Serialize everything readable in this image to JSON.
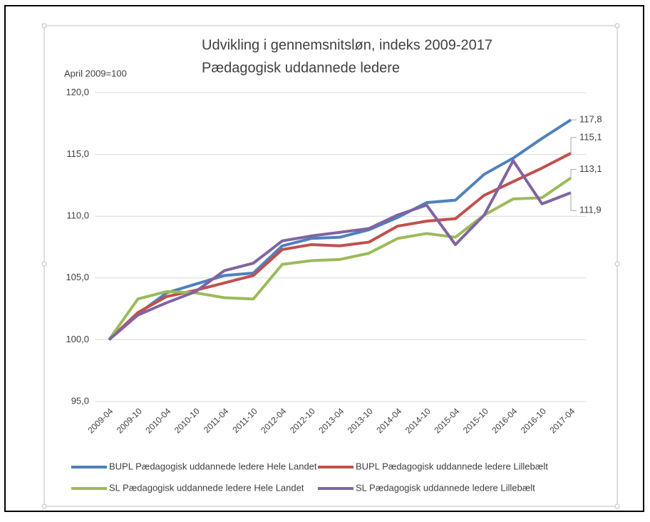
{
  "chart_data": {
    "type": "line",
    "title": "Udvikling i gennemsnitsløn, indeks 2009-2017",
    "subtitle": "Pædagogisk uddannede ledere",
    "y_label": "April 2009=100",
    "categories": [
      "2009-04",
      "2009-10",
      "2010-04",
      "2010-10",
      "2011-04",
      "2011-10",
      "2012-04",
      "2012-10",
      "2013-04",
      "2013-10",
      "2014-04",
      "2014-10",
      "2015-04",
      "2015-10",
      "2016-04",
      "2016-10",
      "2017-04"
    ],
    "ylim": [
      95,
      120
    ],
    "yticks": [
      {
        "value": 95,
        "label": "95,0"
      },
      {
        "value": 100,
        "label": "100,0"
      },
      {
        "value": 105,
        "label": "105,0"
      },
      {
        "value": 110,
        "label": "110,0"
      },
      {
        "value": 115,
        "label": "115,0"
      },
      {
        "value": 120,
        "label": "120,0"
      }
    ],
    "grid": true,
    "legend": "bottom",
    "series": [
      {
        "name": "BUPL Pædagogisk uddannede ledere Hele Landet",
        "color": "#4f81bd",
        "values": [
          100,
          102.1,
          103.8,
          104.5,
          105.2,
          105.4,
          107.6,
          108.2,
          108.3,
          108.9,
          109.9,
          111.1,
          111.3,
          113.4,
          114.7,
          116.3,
          117.8
        ],
        "value_labels": [
          null,
          null,
          null,
          null,
          null,
          null,
          null,
          null,
          null,
          null,
          null,
          null,
          null,
          null,
          null,
          null,
          "117,8"
        ]
      },
      {
        "name": "BUPL Pædagogisk uddannede ledere Lillebælt",
        "color": "#c0504d",
        "values": [
          100,
          102.2,
          103.5,
          104.0,
          104.6,
          105.2,
          107.3,
          107.7,
          107.6,
          107.9,
          109.2,
          109.6,
          109.8,
          111.7,
          112.8,
          113.9,
          115.1
        ],
        "value_labels": [
          null,
          null,
          null,
          null,
          null,
          null,
          null,
          null,
          null,
          null,
          null,
          null,
          null,
          null,
          null,
          null,
          "115,1"
        ]
      },
      {
        "name": "SL Pædagogisk uddannede ledere Hele Landet",
        "color": "#9bbb59",
        "values": [
          100,
          103.3,
          103.9,
          103.8,
          103.4,
          103.3,
          106.1,
          106.4,
          106.5,
          107.0,
          108.2,
          108.6,
          108.3,
          110.1,
          111.4,
          111.5,
          113.1
        ],
        "value_labels": [
          null,
          null,
          null,
          null,
          null,
          null,
          null,
          null,
          null,
          null,
          null,
          null,
          null,
          null,
          null,
          null,
          "113,1"
        ]
      },
      {
        "name": "SL Pædagogisk uddannede ledere Lillebælt",
        "color": "#8064a2",
        "values": [
          100,
          102.0,
          103.0,
          103.9,
          105.6,
          106.2,
          108.0,
          108.4,
          108.7,
          109.0,
          110.1,
          110.9,
          107.7,
          110.1,
          114.5,
          111.0,
          111.9
        ],
        "value_labels": [
          null,
          null,
          null,
          null,
          null,
          null,
          null,
          null,
          null,
          null,
          null,
          null,
          null,
          null,
          null,
          null,
          "111,9"
        ]
      }
    ]
  }
}
